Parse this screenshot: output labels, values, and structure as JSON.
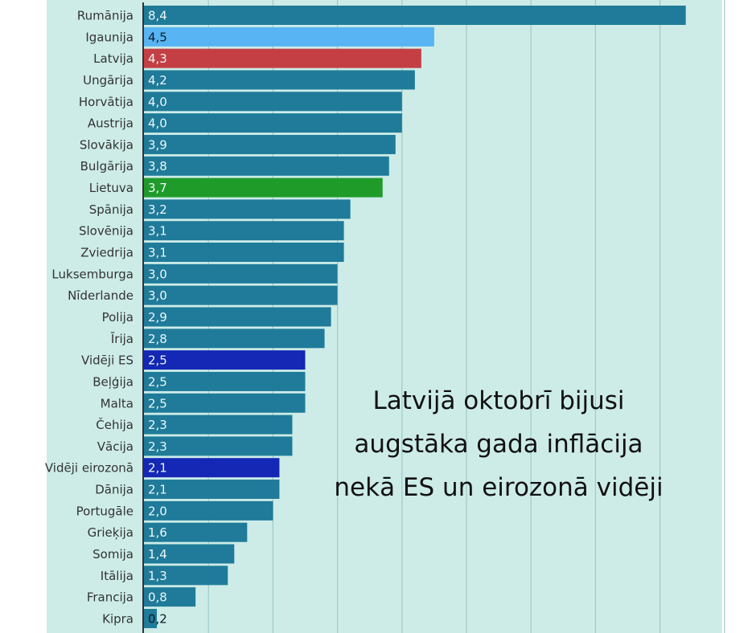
{
  "chart_data": {
    "type": "bar",
    "orientation": "horizontal",
    "title": "",
    "xlabel": "",
    "ylabel": "",
    "xlim": [
      0,
      9
    ],
    "grid": true,
    "legend": "none",
    "categories": [
      "Rumānija",
      "Igaunija",
      "Latvija",
      "Ungārija",
      "Horvātija",
      "Austrija",
      "Slovākija",
      "Bulgārija",
      "Lietuva",
      "Spānija",
      "Slovēnija",
      "Zviedrija",
      "Luksemburga",
      "Nīderlande",
      "Polija",
      "Īrija",
      "Vidēji ES",
      "Beļģija",
      "Malta",
      "Čehija",
      "Vācija",
      "Vidēji eirozonā",
      "Dānija",
      "Portugāle",
      "Grieķija",
      "Somija",
      "Itālija",
      "Francija",
      "Kipra"
    ],
    "values": [
      8.4,
      4.5,
      4.3,
      4.2,
      4.0,
      4.0,
      3.9,
      3.8,
      3.7,
      3.2,
      3.1,
      3.1,
      3.0,
      3.0,
      2.9,
      2.8,
      2.5,
      2.5,
      2.5,
      2.3,
      2.3,
      2.1,
      2.1,
      2.0,
      1.6,
      1.4,
      1.3,
      0.8,
      0.2
    ],
    "labels": [
      "8,4",
      "4,5",
      "4,3",
      "4,2",
      "4,0",
      "4,0",
      "3,9",
      "3,8",
      "3,7",
      "3,2",
      "3,1",
      "3,1",
      "3,0",
      "3,0",
      "2,9",
      "2,8",
      "2,5",
      "2,5",
      "2,5",
      "2,3",
      "2,3",
      "2,1",
      "2,1",
      "2,0",
      "1,6",
      "1,4",
      "1,3",
      "0,8",
      "0,2"
    ],
    "colors": {
      "default": "#1f7b99",
      "Igaunija": "#58b4f2",
      "Latvija": "#c43f43",
      "Lietuva": "#1f9b2a",
      "Vidēji ES": "#1428b5",
      "Vidēji eirozonā": "#1428b5"
    },
    "background": "#cdece8",
    "annotation": [
      "Latvijā oktobrī bijusi",
      "augstāka gada inflācija",
      "nekā ES un eirozonā vidēji"
    ]
  }
}
